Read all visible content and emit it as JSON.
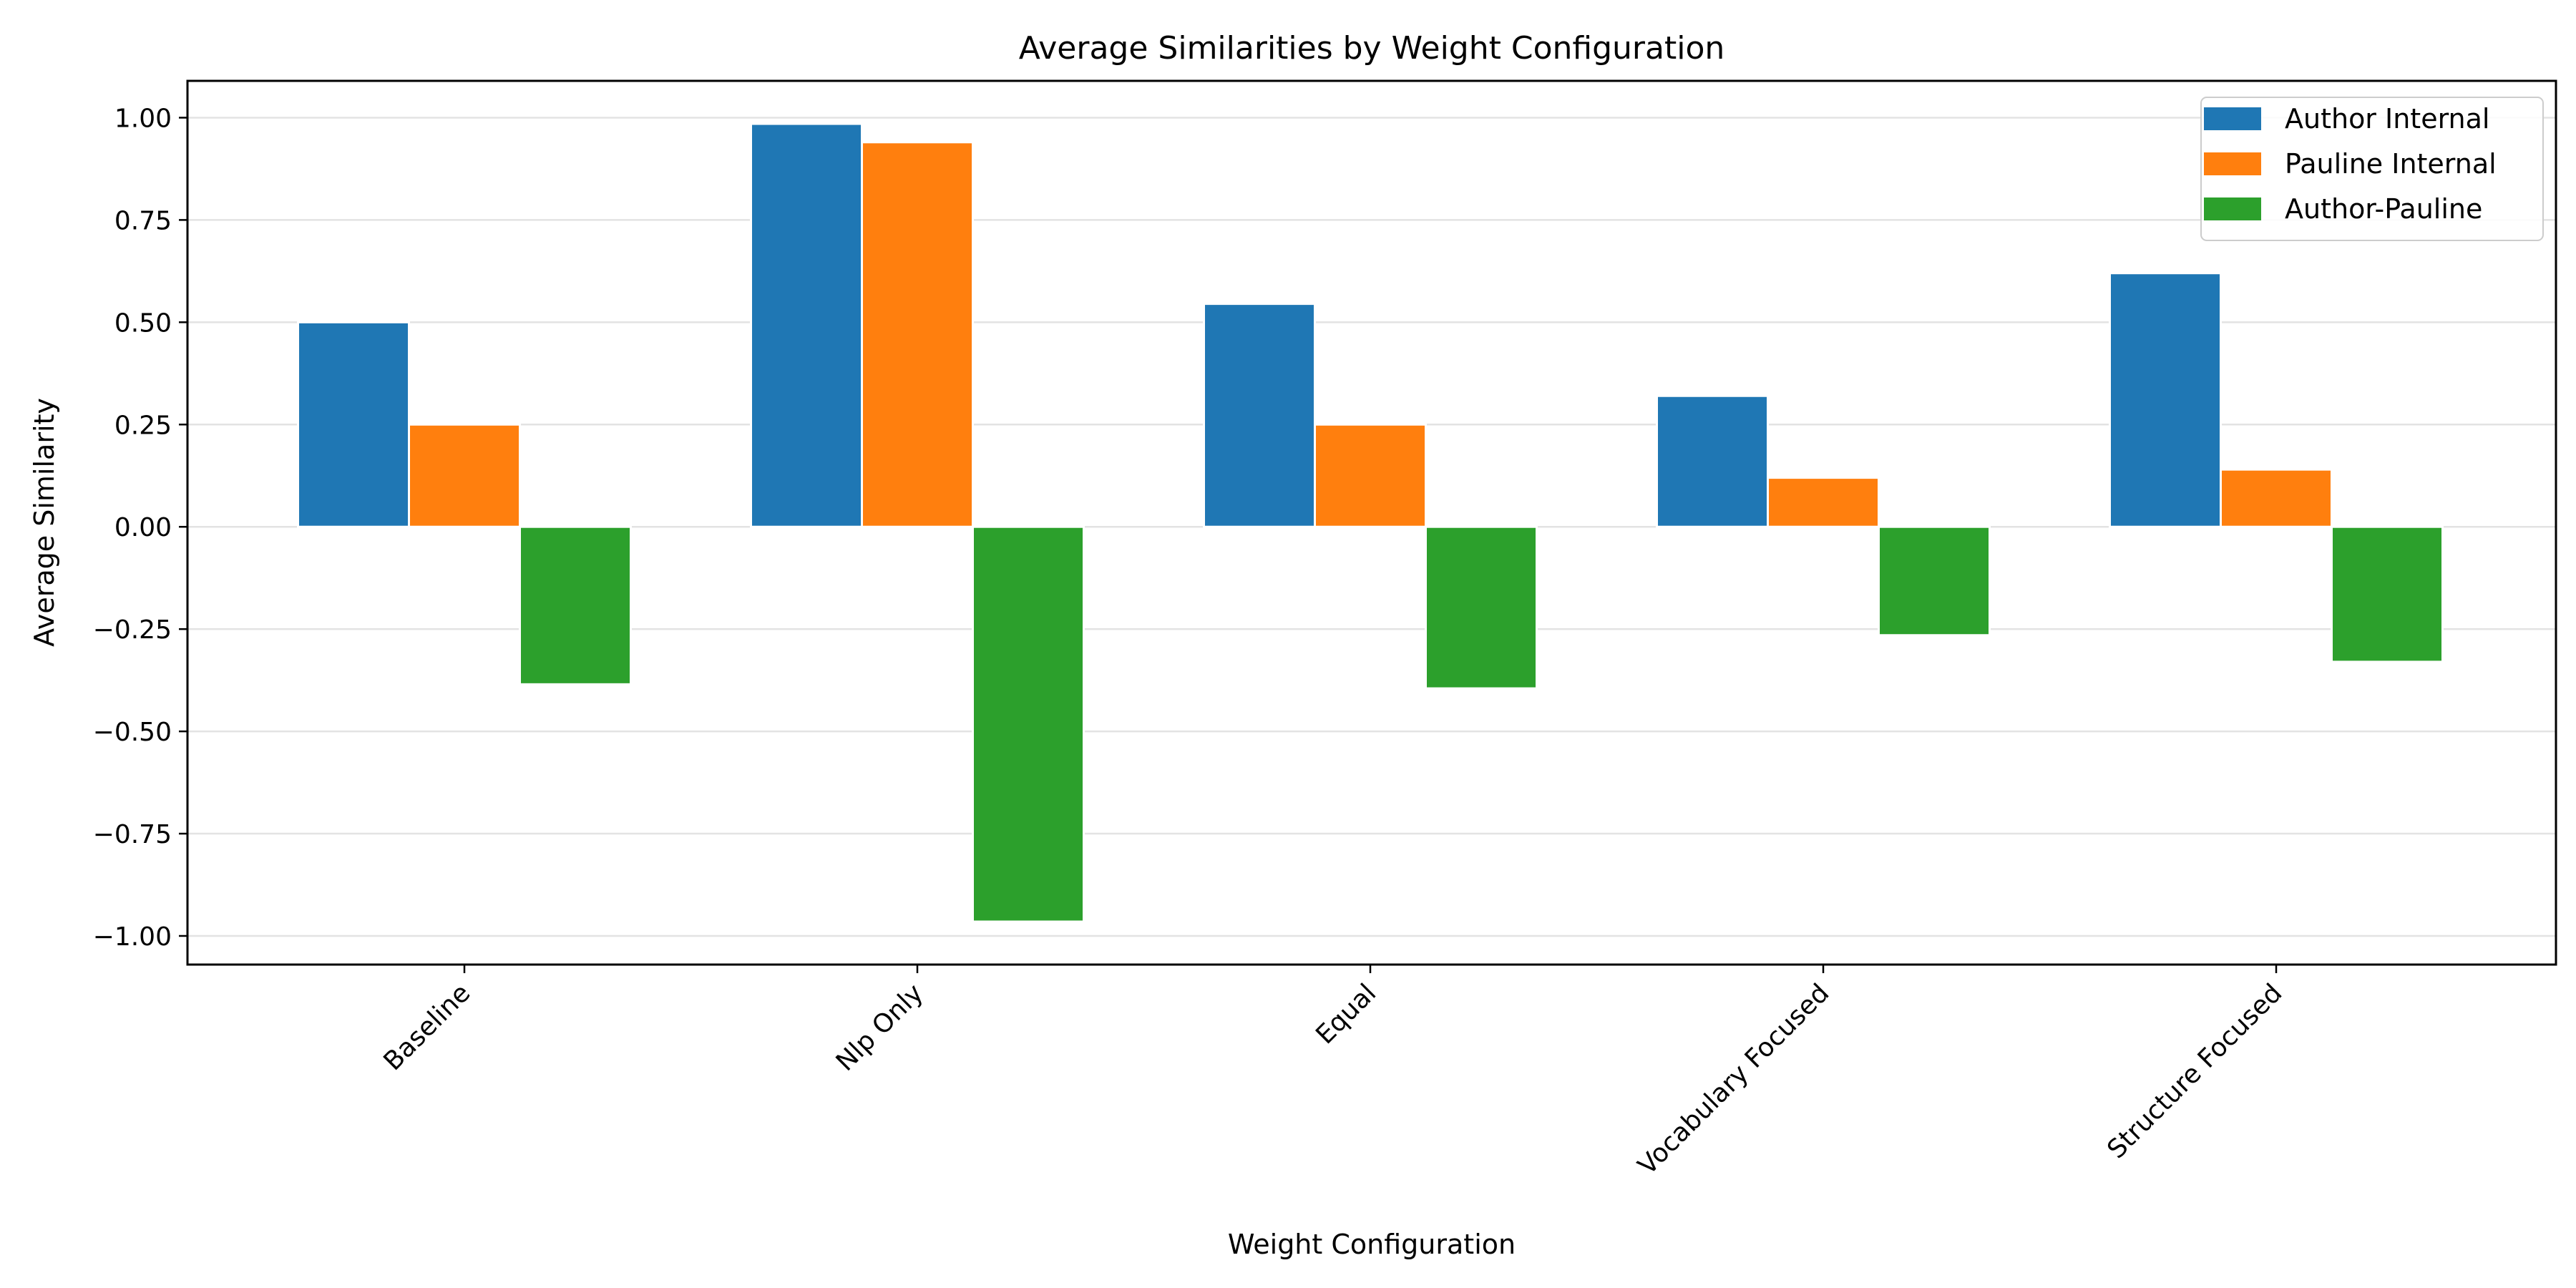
{
  "chart_data": {
    "type": "bar",
    "title": "Average Similarities by Weight Configuration",
    "xlabel": "Weight Configuration",
    "ylabel": "Average Similarity",
    "categories": [
      "Baseline",
      "Nlp Only",
      "Equal",
      "Vocabulary Focused",
      "Structure Focused"
    ],
    "series": [
      {
        "name": "Author Internal",
        "color": "#1f77b4",
        "values": [
          0.5,
          0.985,
          0.545,
          0.32,
          0.62
        ]
      },
      {
        "name": "Pauline Internal",
        "color": "#ff7f0e",
        "values": [
          0.25,
          0.94,
          0.25,
          0.12,
          0.14
        ]
      },
      {
        "name": "Author-Pauline",
        "color": "#2ca02c",
        "values": [
          -0.385,
          -0.965,
          -0.395,
          -0.265,
          -0.33
        ]
      }
    ],
    "ylim": [
      -1.07,
      1.09
    ],
    "yticks": [
      1.0,
      0.75,
      0.5,
      0.25,
      0.0,
      -0.25,
      -0.5,
      -0.75,
      -1.0
    ],
    "ytick_labels": [
      "1.00",
      "0.75",
      "0.50",
      "0.25",
      "0.00",
      "−0.25",
      "−0.50",
      "−0.75",
      "−1.00"
    ],
    "grid": "y",
    "legend_position": "top-right"
  }
}
